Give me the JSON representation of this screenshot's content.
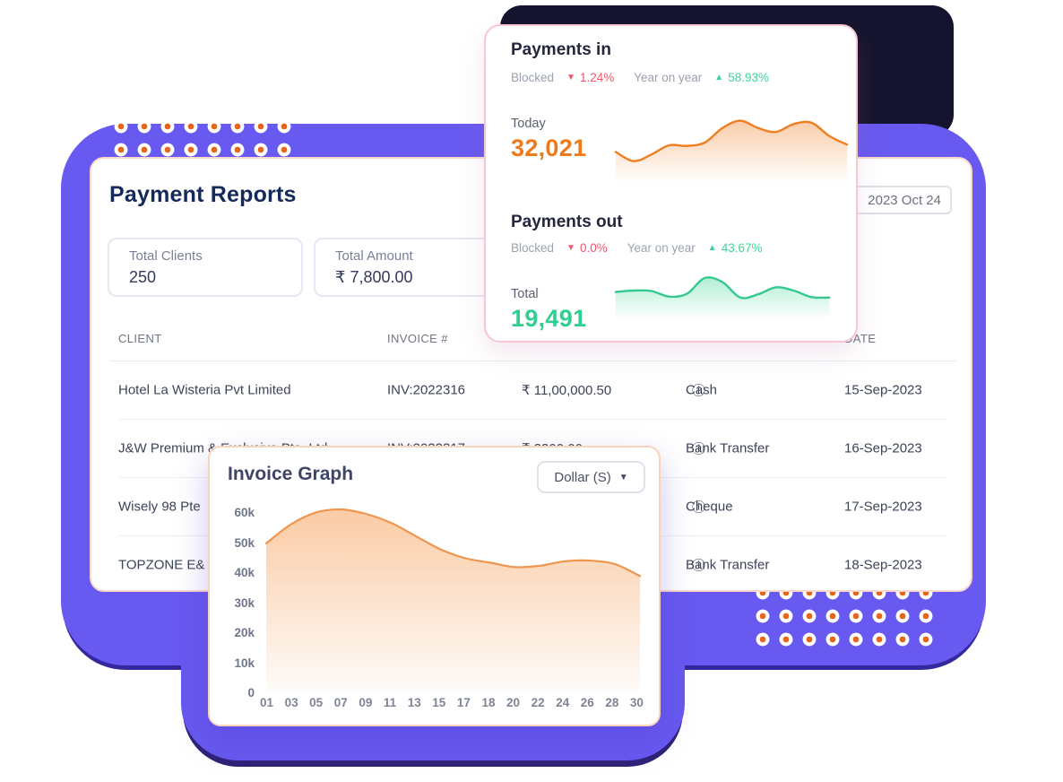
{
  "icons": {
    "info": "ⓘ",
    "triangle_down": "▼",
    "triangle_up": "▲",
    "caret_down": "▼"
  },
  "colors": {
    "purple_background": "#6859F0",
    "dark_accent": "#15142E",
    "orange_accent": "#EE7A1C",
    "green_accent": "#3DD598",
    "red_accent": "#F4536A",
    "title_navy": "#15295B"
  },
  "payments_card": {
    "in": {
      "title": "Payments in",
      "blocked_label": "Blocked",
      "blocked_value": "1.24%",
      "yoy_label": "Year on year",
      "yoy_value": "58.93%",
      "metric_label": "Today",
      "metric_value": "32,021"
    },
    "out": {
      "title": "Payments out",
      "blocked_label": "Blocked",
      "blocked_value": "0.0%",
      "yoy_label": "Year on year",
      "yoy_value": "43.67%",
      "metric_label": "Total",
      "metric_value": "19,491"
    }
  },
  "report_card": {
    "title": "Payment Reports",
    "date": "2023 Oct 24",
    "stats": [
      {
        "label": "Total Clients",
        "value": "250"
      },
      {
        "label": "Total Amount",
        "value": "₹ 7,800.00"
      }
    ],
    "table": {
      "headers": {
        "client": "CLIENT",
        "invoice": "INVOICE #",
        "date": "DATE"
      },
      "rows": [
        {
          "client": "Hotel La Wisteria Pvt Limited",
          "invoice": "INV:2022316",
          "amount": "₹ 11,00,000.50",
          "method": "Cash",
          "date": "15-Sep-2023"
        },
        {
          "client": "J&W Premium & Exclusive Pte. Ltd",
          "invoice": "INV:2022317",
          "amount": "₹ 3300.00",
          "method": "Bank Transfer",
          "date": "16-Sep-2023"
        },
        {
          "client": "Wisely 98 Pte",
          "invoice": "",
          "amount": "",
          "method": "Cheque",
          "date": "17-Sep-2023"
        },
        {
          "client": "TOPZONE E&",
          "invoice": "",
          "amount": "",
          "method": "Bank Transfer",
          "date": "18-Sep-2023"
        }
      ]
    }
  },
  "invoice_card": {
    "title": "Invoice Graph",
    "currency_selector": "Dollar (S)"
  },
  "chart_data": [
    {
      "id": "invoice-graph",
      "type": "area",
      "title": "Invoice Graph",
      "categories": [
        "01",
        "03",
        "05",
        "07",
        "09",
        "11",
        "13",
        "15",
        "17",
        "18",
        "20",
        "22",
        "24",
        "26",
        "28",
        "30"
      ],
      "values": [
        50000,
        56500,
        60500,
        61500,
        60000,
        57000,
        52500,
        48000,
        45000,
        43500,
        42000,
        42500,
        44000,
        44200,
        43000,
        39000
      ],
      "y_ticks": [
        "60k",
        "50k",
        "40k",
        "30k",
        "20k",
        "10k",
        "0"
      ],
      "ylim": [
        0,
        65000
      ],
      "line_color": "#F0954E",
      "fill": "orange-gradient",
      "grid": false,
      "legend": "none"
    },
    {
      "id": "payments-in-spark",
      "type": "area",
      "values": [
        36,
        22,
        32,
        46,
        45,
        50,
        72,
        83,
        72,
        66,
        78,
        80,
        60,
        47
      ],
      "ylim": [
        0,
        100
      ],
      "line_color": "#EF7E21",
      "fill": "orange-gradient"
    },
    {
      "id": "payments-out-spark",
      "type": "area",
      "values": [
        47,
        50,
        49,
        37,
        43,
        77,
        68,
        35,
        42,
        57,
        50,
        36,
        35
      ],
      "ylim": [
        0,
        100
      ],
      "line_color": "#35C98F",
      "fill": "green-gradient"
    }
  ]
}
